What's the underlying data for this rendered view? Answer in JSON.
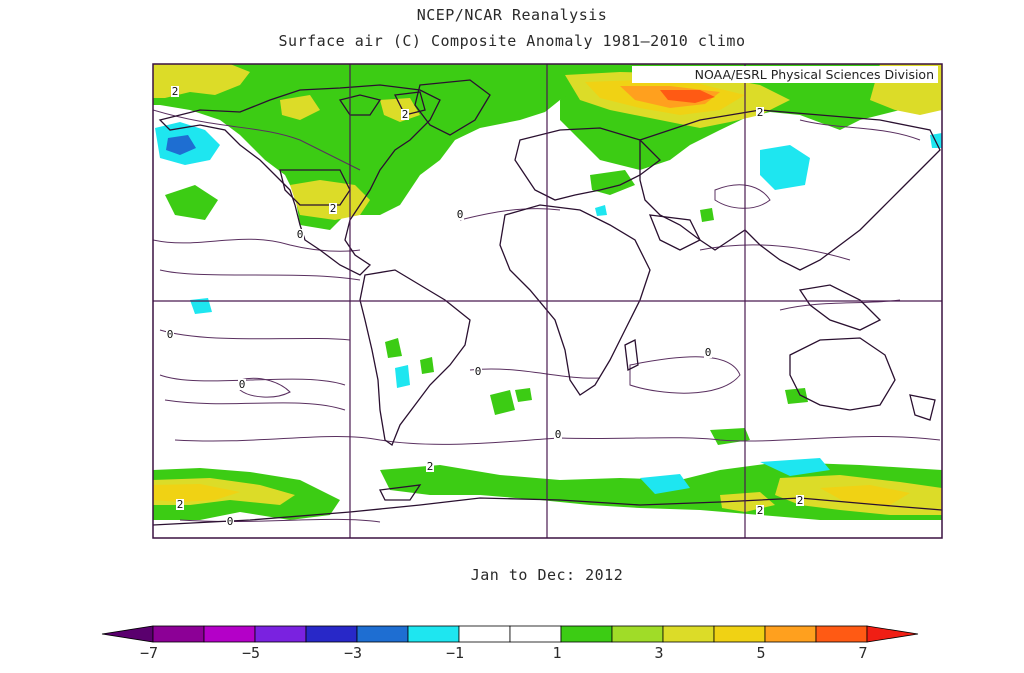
{
  "header": {
    "title": "NCEP/NCAR Reanalysis",
    "subtitle": "Surface air (C) Composite Anomaly 1981–2010 climo"
  },
  "map": {
    "credit": "NOAA/ESRL Physical Sciences Division",
    "period": "Jan to Dec: 2012",
    "contour_labels": [
      "2",
      "2",
      "2",
      "2",
      "2",
      "2",
      "2",
      "2",
      "0",
      "0",
      "0",
      "0",
      "0",
      "0",
      "0",
      "0"
    ]
  },
  "colorbar": {
    "colors": [
      "#5a006e",
      "#8c0096",
      "#b400c8",
      "#7a22e0",
      "#2828c8",
      "#1e6ed2",
      "#1ee6f0",
      "#ffffff",
      "#ffffff",
      "#3ccc14",
      "#a0dc28",
      "#dcdc28",
      "#f0d214",
      "#ffa01e",
      "#ff5a14",
      "#f01e14"
    ],
    "tick_labels": [
      "−7",
      "−5",
      "−3",
      "−1",
      "1",
      "3",
      "5",
      "7"
    ]
  }
}
